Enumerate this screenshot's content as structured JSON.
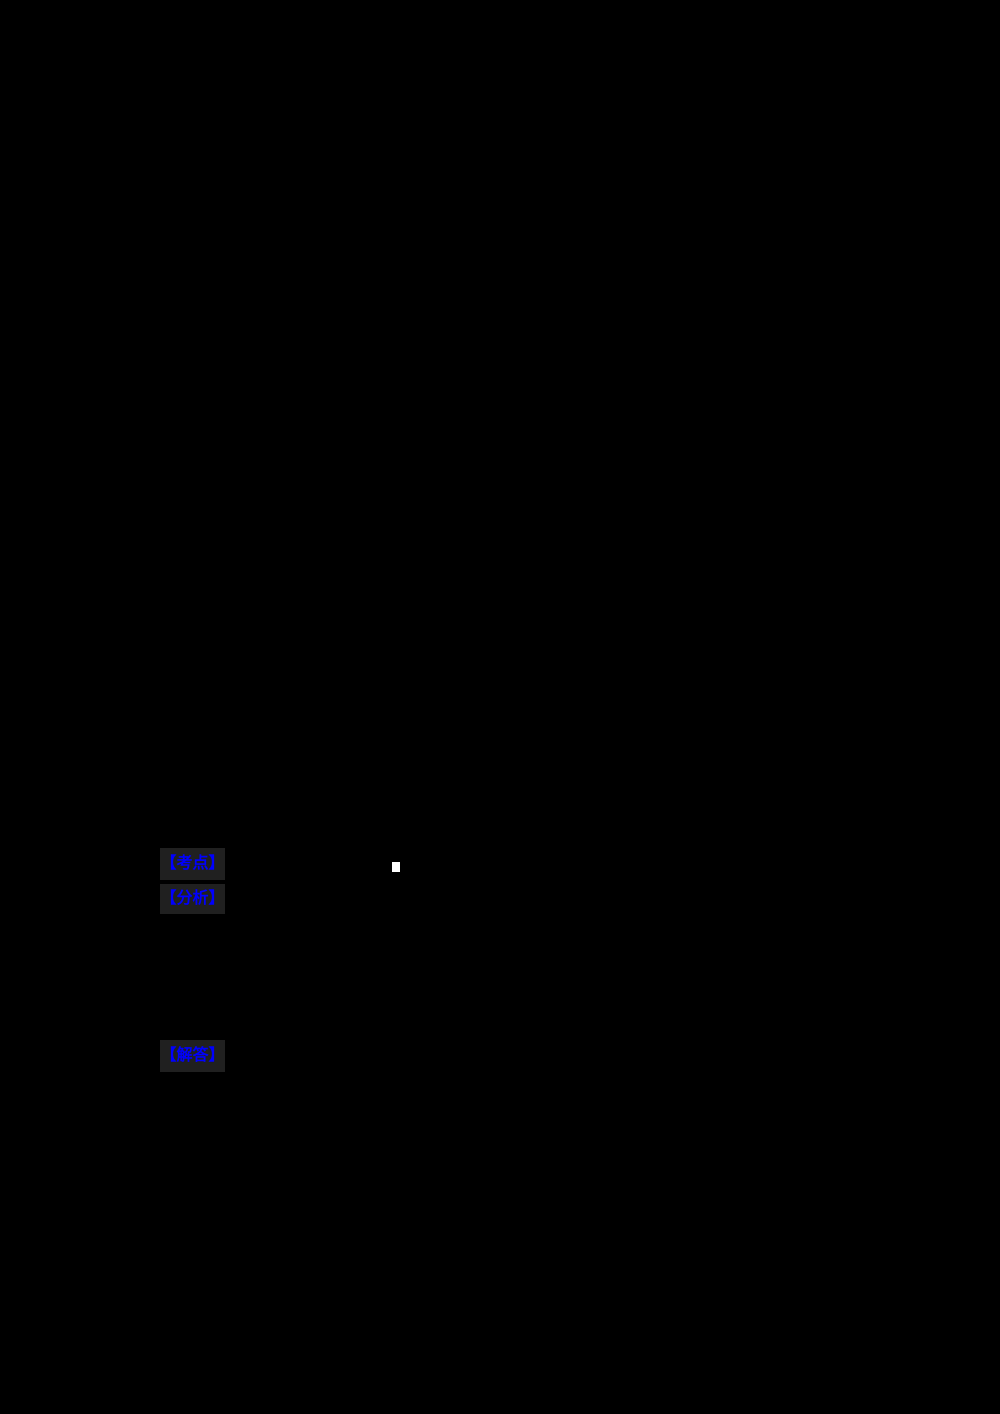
{
  "page": {
    "background_color": "#000000"
  },
  "document": {
    "label_text_color": "#0000ff",
    "label_highlight_color": "#202020",
    "sections": [
      {
        "id": "kaodian",
        "label": "【考点】"
      },
      {
        "id": "fenxi",
        "label": "【分析】"
      },
      {
        "id": "jieda",
        "label": "【解答】"
      }
    ],
    "placeholder_square": {
      "color": "#ffffff"
    }
  }
}
